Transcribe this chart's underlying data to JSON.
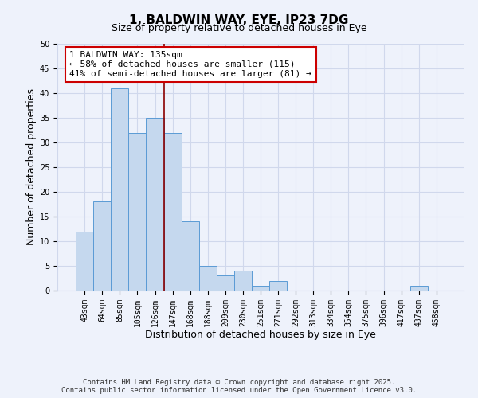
{
  "title": "1, BALDWIN WAY, EYE, IP23 7DG",
  "subtitle": "Size of property relative to detached houses in Eye",
  "xlabel": "Distribution of detached houses by size in Eye",
  "ylabel": "Number of detached properties",
  "bar_labels": [
    "43sqm",
    "64sqm",
    "85sqm",
    "105sqm",
    "126sqm",
    "147sqm",
    "168sqm",
    "188sqm",
    "209sqm",
    "230sqm",
    "251sqm",
    "271sqm",
    "292sqm",
    "313sqm",
    "334sqm",
    "354sqm",
    "375sqm",
    "396sqm",
    "417sqm",
    "437sqm",
    "458sqm"
  ],
  "bar_values": [
    12,
    18,
    41,
    32,
    35,
    32,
    14,
    5,
    3,
    4,
    1,
    2,
    0,
    0,
    0,
    0,
    0,
    0,
    0,
    1,
    0
  ],
  "bar_color": "#c5d8ee",
  "bar_edge_color": "#5b9bd5",
  "vline_color": "#8b0000",
  "vline_x_idx": 4.5,
  "ylim": [
    0,
    50
  ],
  "yticks": [
    0,
    5,
    10,
    15,
    20,
    25,
    30,
    35,
    40,
    45,
    50
  ],
  "annotation_text": "1 BALDWIN WAY: 135sqm\n← 58% of detached houses are smaller (115)\n41% of semi-detached houses are larger (81) →",
  "annotation_box_color": "#ffffff",
  "annotation_box_edge": "#cc0000",
  "footnote1": "Contains HM Land Registry data © Crown copyright and database right 2025.",
  "footnote2": "Contains public sector information licensed under the Open Government Licence v3.0.",
  "bg_color": "#eef2fb",
  "grid_color": "#d0d8ec",
  "title_fontsize": 11,
  "axis_label_fontsize": 9,
  "tick_fontsize": 7,
  "annotation_fontsize": 8,
  "footnote_fontsize": 6.5
}
